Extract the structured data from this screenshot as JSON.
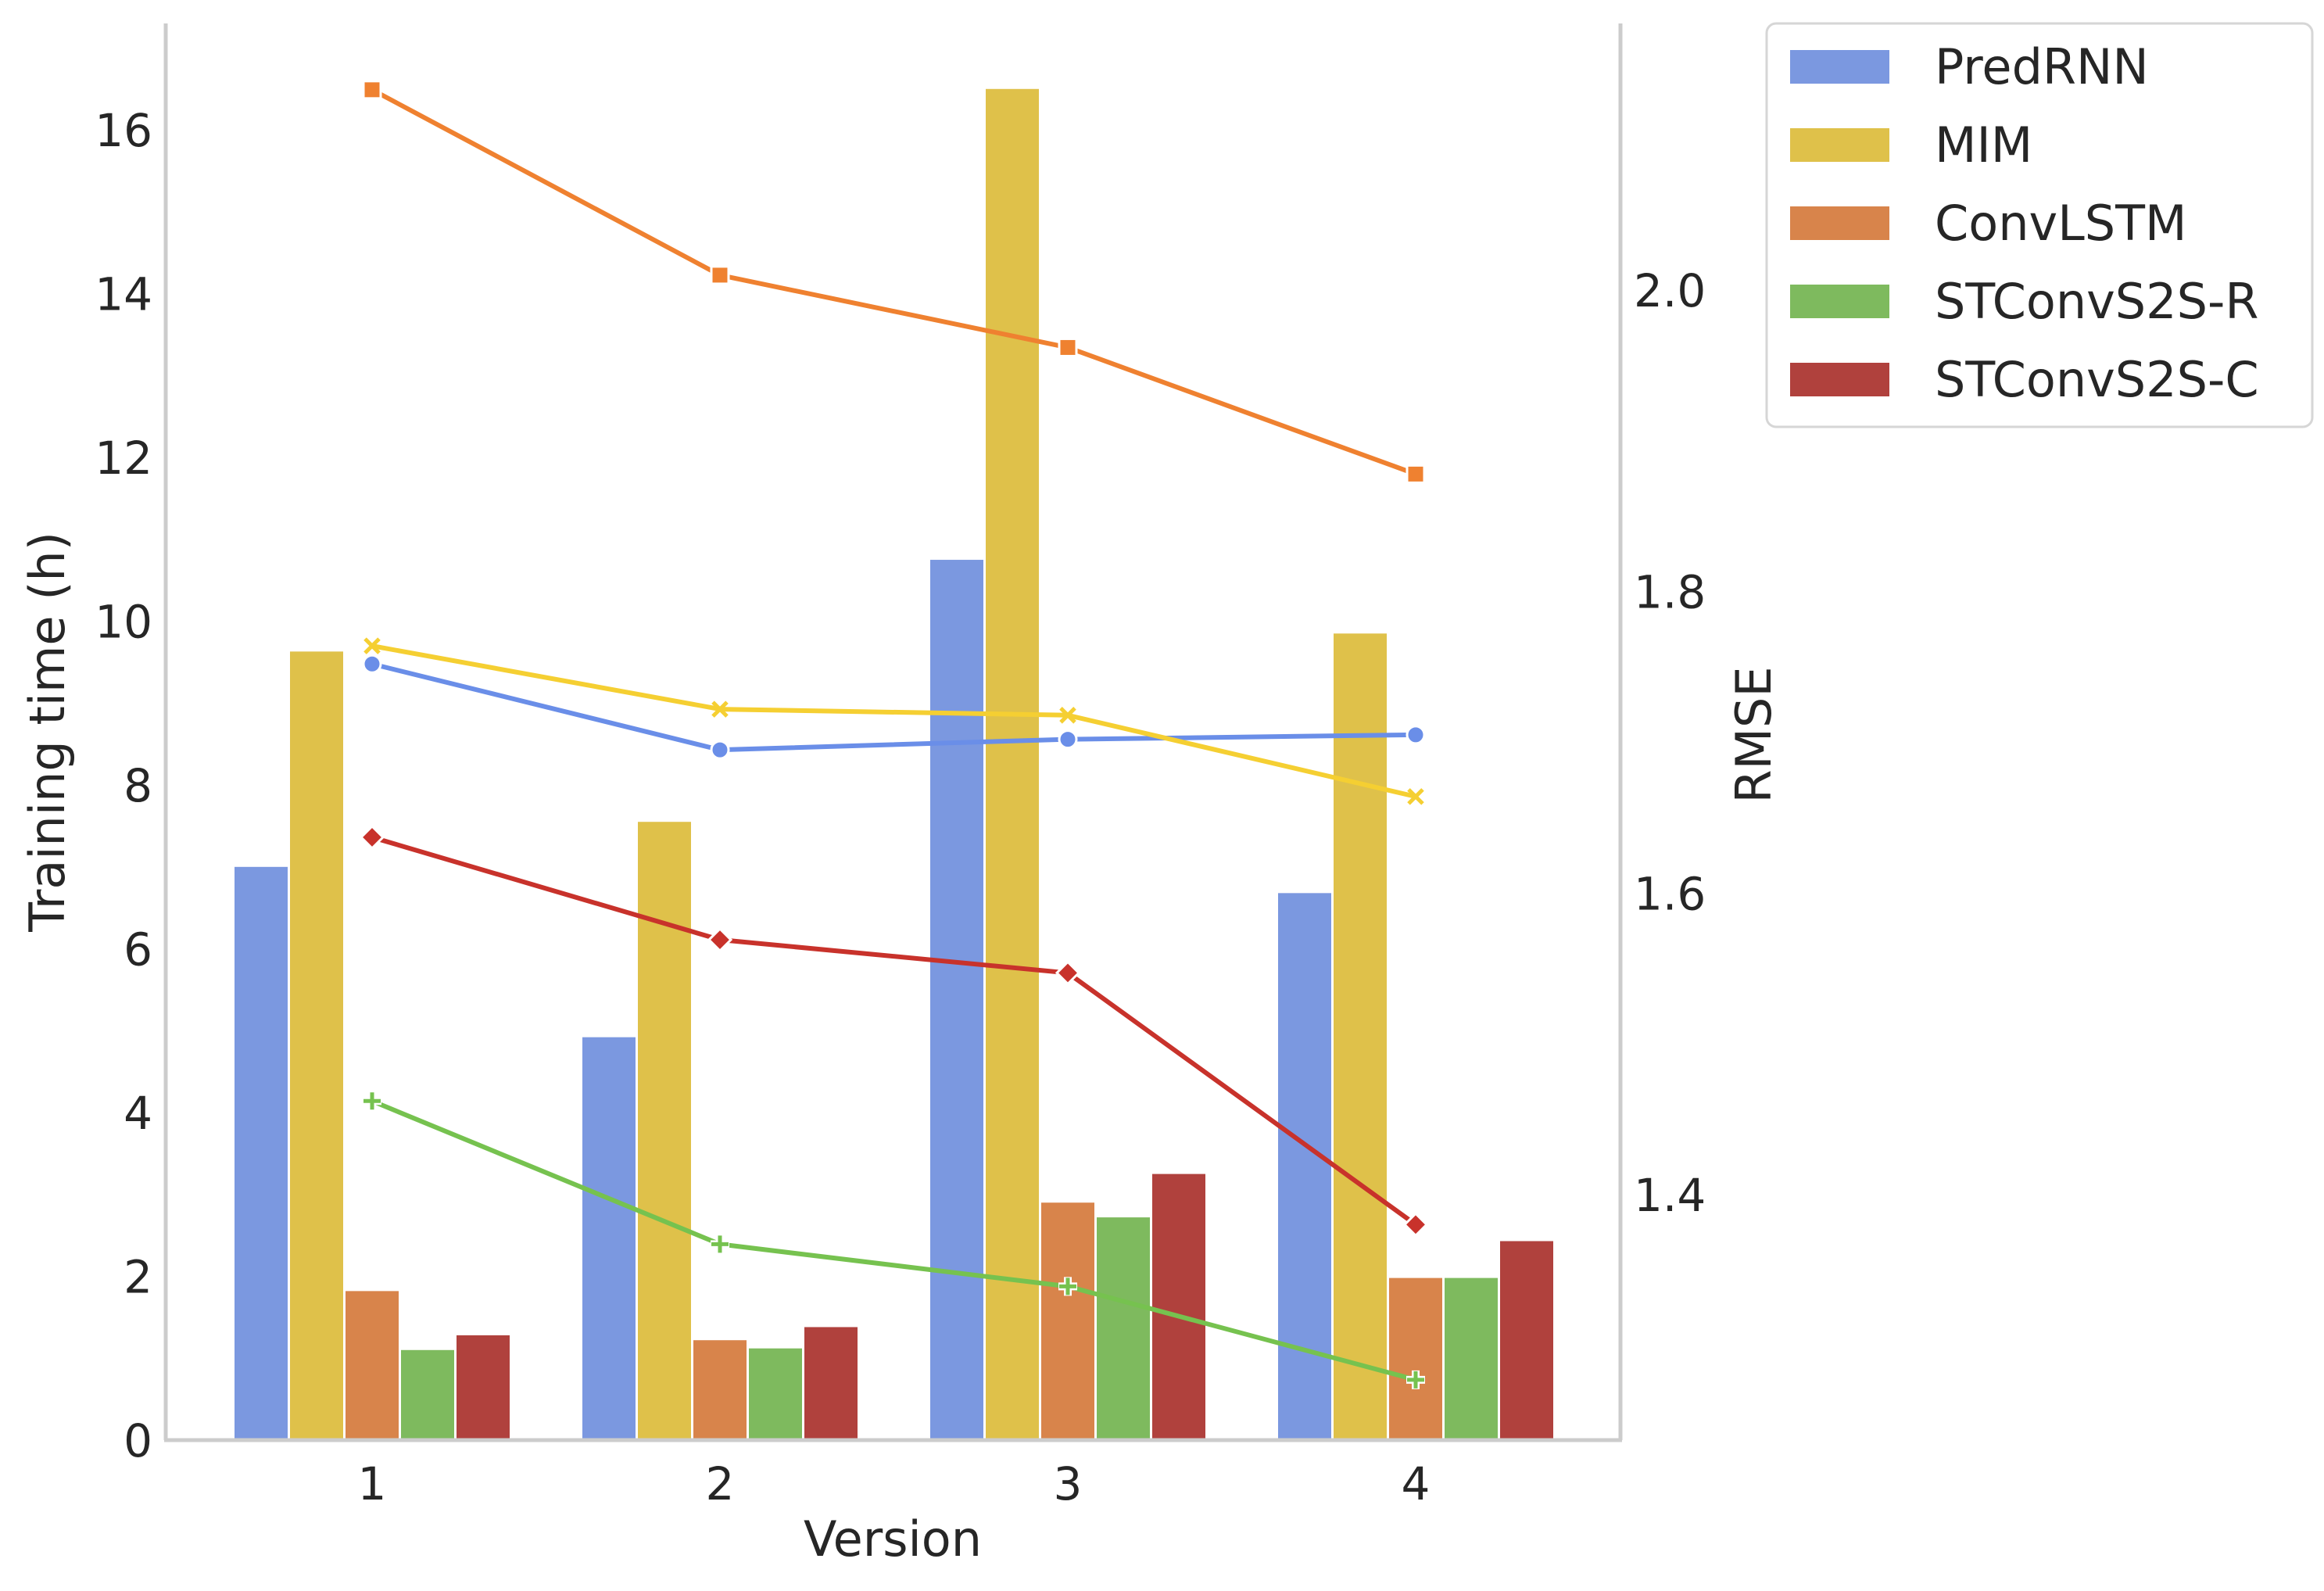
{
  "chart_data": {
    "type": "bar",
    "categories": [
      "1",
      "2",
      "3",
      "4"
    ],
    "xlabel": "Version",
    "ylabel": "Training time (h)",
    "ylim": [
      0,
      17.3
    ],
    "yticks": [
      0,
      2,
      4,
      6,
      8,
      10,
      12,
      14,
      16
    ],
    "ytick_labels": [
      "0",
      "2",
      "4",
      "6",
      "8",
      "10",
      "12",
      "14",
      "16"
    ],
    "y2label": "RMSE",
    "y2lim": [
      1.237,
      2.177
    ],
    "y2ticks": [
      1.4,
      1.6,
      1.8,
      2.0
    ],
    "y2tick_labels": [
      "1.4",
      "1.6",
      "1.8",
      "2.0"
    ],
    "grid": false,
    "legend_position": "outside-top-right",
    "series": [
      {
        "name": "PredRNN",
        "bar_color": "#7b98e0",
        "line_color": "#6a8ee8",
        "marker": "circle",
        "values": [
          7.0,
          4.92,
          10.75,
          6.68
        ],
        "rmse": [
          1.752,
          1.695,
          1.702,
          1.705
        ]
      },
      {
        "name": "MIM",
        "bar_color": "#dfc14a",
        "line_color": "#f5cf32",
        "marker": "x",
        "values": [
          9.63,
          7.55,
          16.5,
          9.85
        ],
        "rmse": [
          1.764,
          1.722,
          1.718,
          1.664
        ]
      },
      {
        "name": "ConvLSTM",
        "bar_color": "#d8844b",
        "line_color": "#ef8130",
        "marker": "square",
        "values": [
          1.82,
          1.22,
          2.9,
          1.98
        ],
        "rmse": [
          2.133,
          2.01,
          1.962,
          1.878
        ]
      },
      {
        "name": "STConvS2S-R",
        "bar_color": "#7eba5e",
        "line_color": "#76c24f",
        "marker": "plus",
        "values": [
          1.1,
          1.12,
          2.72,
          1.98
        ],
        "rmse": [
          1.462,
          1.367,
          1.339,
          1.277
        ]
      },
      {
        "name": "STConvS2S-C",
        "bar_color": "#b0413d",
        "line_color": "#c8322b",
        "marker": "diamond",
        "values": [
          1.28,
          1.38,
          3.25,
          2.43
        ],
        "rmse": [
          1.637,
          1.569,
          1.547,
          1.38
        ]
      }
    ]
  }
}
